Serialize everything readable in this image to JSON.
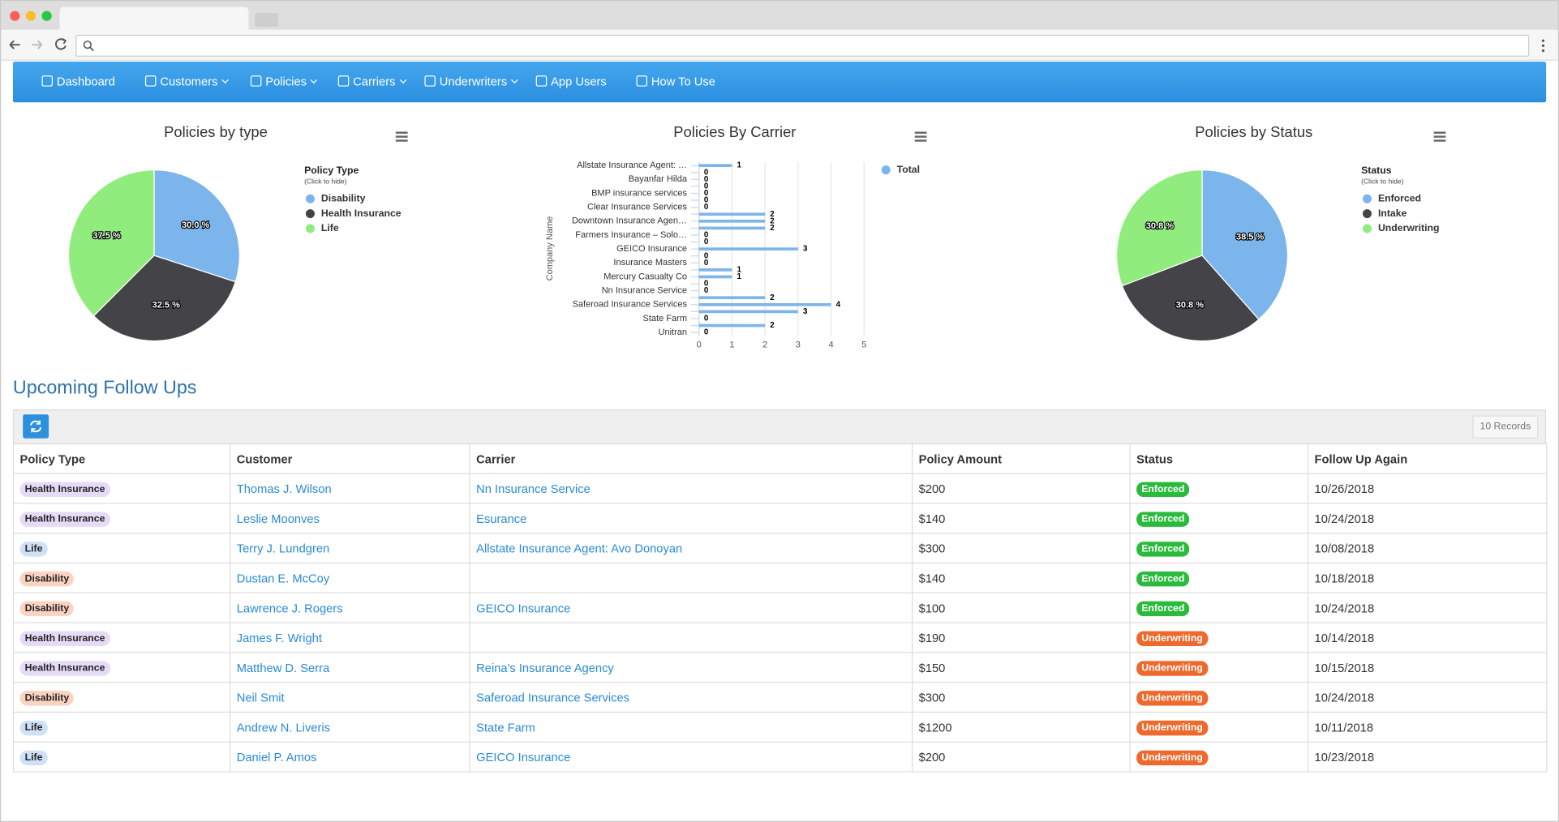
{
  "nav": {
    "items": [
      {
        "label": "Dashboard",
        "dropdown": false
      },
      {
        "label": "Customers",
        "dropdown": true
      },
      {
        "label": "Policies",
        "dropdown": true
      },
      {
        "label": "Carriers",
        "dropdown": true
      },
      {
        "label": "Underwriters",
        "dropdown": true
      },
      {
        "label": "App Users",
        "dropdown": false
      },
      {
        "label": "How To Use",
        "dropdown": false
      }
    ]
  },
  "chart_data": [
    {
      "type": "pie",
      "title": "Policies by type",
      "legend_title": "Policy Type",
      "legend_subtitle": "(Click to hide)",
      "categories": [
        "Disability",
        "Health Insurance",
        "Life"
      ],
      "values": [
        30.0,
        32.5,
        37.5
      ],
      "value_labels": [
        "30.0 %",
        "32.5 %",
        "37.5 %"
      ],
      "colors": [
        "#7cb5ec",
        "#434348",
        "#90ed7d"
      ]
    },
    {
      "type": "bar",
      "title": "Policies By Carrier",
      "y_axis_label": "Company Name",
      "categories": [
        "Allstate Insurance Agent: …",
        null,
        "Bayanfar Hilda",
        null,
        "BMP insurance services",
        null,
        "Clear Insurance Services",
        null,
        "Downtown Insurance Agen…",
        null,
        "Farmers Insurance – Solo…",
        null,
        "GEICO Insurance",
        null,
        "Insurance Masters",
        null,
        "Mercury Casualty Co",
        null,
        "Nn Insurance Service",
        null,
        "Saferoad Insurance Services",
        null,
        "State Farm",
        null,
        "Unitran"
      ],
      "series": [
        {
          "name": "Total",
          "color": "#7cb5ec",
          "values": [
            1,
            0,
            0,
            0,
            0,
            0,
            0,
            2,
            2,
            2,
            0,
            0,
            3,
            0,
            0,
            1,
            1,
            0,
            0,
            2,
            4,
            3,
            0,
            2,
            0
          ]
        }
      ],
      "xlim": [
        0,
        5
      ],
      "xticks": [
        0,
        1,
        2,
        3,
        4,
        5
      ],
      "grid": true
    },
    {
      "type": "pie",
      "title": "Policies by Status",
      "legend_title": "Status",
      "legend_subtitle": "(Click to hide)",
      "categories": [
        "Enforced",
        "Intake",
        "Underwriting"
      ],
      "values": [
        38.5,
        30.8,
        30.8
      ],
      "value_labels": [
        "38.5 %",
        "30.8 %",
        "30.8 %"
      ],
      "colors": [
        "#7cb5ec",
        "#434348",
        "#90ed7d"
      ]
    }
  ],
  "section_title": "Upcoming Follow Ups",
  "table": {
    "records": "10 Records",
    "columns": [
      "Policy Type",
      "Customer",
      "Carrier",
      "Policy Amount",
      "Status",
      "Follow Up Again"
    ],
    "type_colors": {
      "Health Insurance": "#e6dbf7",
      "Life": "#cfe1f7",
      "Disability": "#fbd3c0"
    },
    "status_colors": {
      "Enforced": "#2bbb3c",
      "Underwriting": "#f0692c"
    },
    "rows": [
      [
        "Health Insurance",
        "Thomas J. Wilson",
        "Nn Insurance Service",
        "$200",
        "Enforced",
        "10/26/2018"
      ],
      [
        "Health Insurance",
        "Leslie Moonves",
        "Esurance",
        "$140",
        "Enforced",
        "10/24/2018"
      ],
      [
        "Life",
        "Terry J. Lundgren",
        "Allstate Insurance Agent: Avo Donoyan",
        "$300",
        "Enforced",
        "10/08/2018"
      ],
      [
        "Disability",
        "Dustan E. McCoy",
        null,
        "$140",
        "Enforced",
        "10/18/2018"
      ],
      [
        "Disability",
        "Lawrence J. Rogers",
        "GEICO Insurance",
        "$100",
        "Enforced",
        "10/24/2018"
      ],
      [
        "Health Insurance",
        "James F. Wright",
        null,
        "$190",
        "Underwriting",
        "10/14/2018"
      ],
      [
        "Health Insurance",
        "Matthew D. Serra",
        "Reina's Insurance Agency",
        "$150",
        "Underwriting",
        "10/15/2018"
      ],
      [
        "Disability",
        "Neil Smit",
        "Saferoad Insurance Services",
        "$300",
        "Underwriting",
        "10/24/2018"
      ],
      [
        "Life",
        "Andrew N. Liveris",
        "State Farm",
        "$1200",
        "Underwriting",
        "10/11/2018"
      ],
      [
        "Life",
        "Daniel P. Amos",
        "GEICO Insurance",
        "$200",
        "Underwriting",
        "10/23/2018"
      ]
    ]
  }
}
